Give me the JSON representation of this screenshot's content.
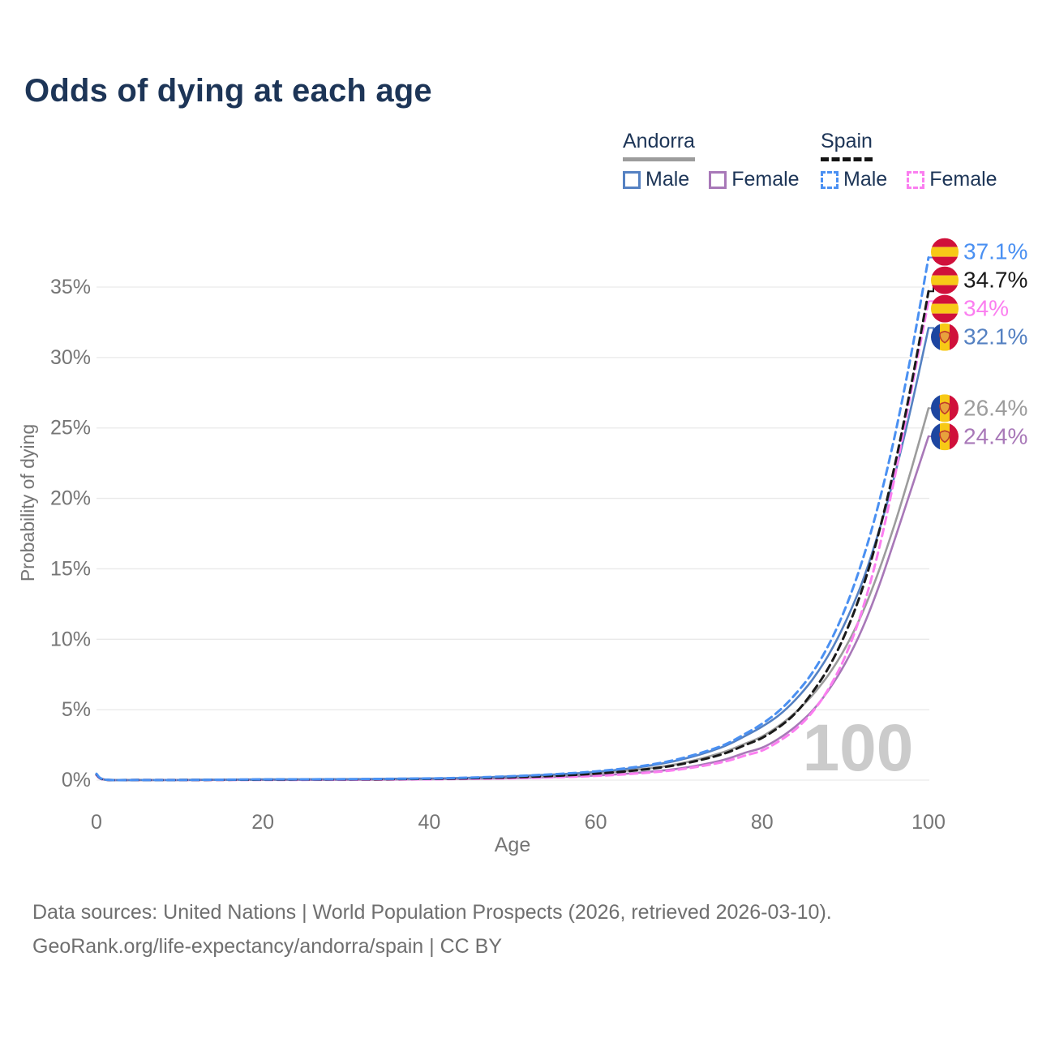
{
  "title": "Odds of dying at each age",
  "watermark": "100",
  "colors": {
    "title": "#1d3557",
    "axis_text": "#757575",
    "grid": "#e9e9e9",
    "watermark": "#cbcbcb",
    "footer": "#6f6f6f",
    "spain_male": "#4a90f2",
    "spain_total": "#1a1a1a",
    "spain_female": "#fb7ef0",
    "andorra_male": "#5581c2",
    "andorra_total": "#9c9c9c",
    "andorra_female": "#a878b8"
  },
  "legend": {
    "groups": [
      {
        "country": "Andorra",
        "line_style": "solid",
        "header_swatch_color": "#9c9c9c",
        "items": [
          {
            "label": "Male",
            "color": "#5581c2"
          },
          {
            "label": "Female",
            "color": "#a878b8"
          }
        ]
      },
      {
        "country": "Spain",
        "line_style": "dashed",
        "header_swatch_color": "#141414",
        "items": [
          {
            "label": "Male",
            "color": "#4a90f2"
          },
          {
            "label": "Female",
            "color": "#fb7ef0"
          }
        ]
      }
    ]
  },
  "footer": {
    "line1": "Data sources: United Nations | World Population Prospects (2026, retrieved 2026-03-10).",
    "line2": "GeoRank.org/life-expectancy/andorra/spain | CC BY"
  },
  "chart_data": {
    "type": "line",
    "title": "Odds of dying at each age",
    "xlabel": "Age",
    "ylabel": "Probability of dying",
    "xlim": [
      0,
      100
    ],
    "ylim": [
      0,
      38
    ],
    "grid": "horizontal",
    "legend_position": "top-right",
    "xticks": [
      0,
      20,
      40,
      60,
      80,
      100
    ],
    "xtick_labels": [
      "0",
      "20",
      "40",
      "60",
      "80",
      "100"
    ],
    "yticks": [
      0,
      5,
      10,
      15,
      20,
      25,
      30,
      35
    ],
    "ytick_labels": [
      "0%",
      "5%",
      "10%",
      "15%",
      "20%",
      "25%",
      "30%",
      "35%"
    ],
    "age_watermark": "100",
    "x": [
      0,
      1,
      5,
      10,
      20,
      30,
      40,
      45,
      50,
      55,
      60,
      65,
      70,
      75,
      78,
      80,
      82,
      84,
      86,
      88,
      90,
      92,
      94,
      96,
      98,
      100
    ],
    "series": [
      {
        "name": "Andorra Female",
        "country": "Andorra",
        "sex": "Female",
        "color": "#a878b8",
        "dash": false,
        "end_label": "24.4%",
        "flag": "andorra",
        "values": [
          0.35,
          0.03,
          0.008,
          0.008,
          0.015,
          0.025,
          0.06,
          0.1,
          0.14,
          0.22,
          0.33,
          0.52,
          0.82,
          1.38,
          1.95,
          2.3,
          2.95,
          3.8,
          4.9,
          6.4,
          8.3,
          10.7,
          13.7,
          17.2,
          20.8,
          24.4
        ]
      },
      {
        "name": "Andorra",
        "country": "Andorra",
        "sex": "Both",
        "color": "#9c9c9c",
        "dash": false,
        "end_label": "26.4%",
        "flag": "andorra",
        "values": [
          0.4,
          0.035,
          0.009,
          0.01,
          0.035,
          0.05,
          0.09,
          0.14,
          0.21,
          0.32,
          0.48,
          0.74,
          1.16,
          1.92,
          2.6,
          3.1,
          3.85,
          4.8,
          6.0,
          7.5,
          9.4,
          11.8,
          14.8,
          18.3,
          22.2,
          26.4
        ]
      },
      {
        "name": "Andorra Male",
        "country": "Andorra",
        "sex": "Male",
        "color": "#5581c2",
        "dash": false,
        "end_label": "32.1%",
        "flag": "andorra",
        "values": [
          0.45,
          0.04,
          0.01,
          0.012,
          0.05,
          0.07,
          0.12,
          0.17,
          0.27,
          0.4,
          0.58,
          0.9,
          1.42,
          2.3,
          3.15,
          3.8,
          4.6,
          5.7,
          7.1,
          8.9,
          11.2,
          14.0,
          17.6,
          21.8,
          26.7,
          32.1
        ]
      },
      {
        "name": "Spain Female",
        "country": "Spain",
        "sex": "Female",
        "color": "#fb7ef0",
        "dash": true,
        "end_label": "34%",
        "flag": "spain",
        "values": [
          0.35,
          0.03,
          0.008,
          0.008,
          0.015,
          0.025,
          0.06,
          0.09,
          0.13,
          0.2,
          0.3,
          0.47,
          0.75,
          1.25,
          1.75,
          2.1,
          2.75,
          3.6,
          4.8,
          6.5,
          8.8,
          12.0,
          16.3,
          21.7,
          27.9,
          34.0
        ]
      },
      {
        "name": "Spain",
        "country": "Spain",
        "sex": "Both",
        "color": "#1a1a1a",
        "dash": true,
        "end_label": "34.7%",
        "flag": "spain",
        "values": [
          0.4,
          0.035,
          0.009,
          0.01,
          0.035,
          0.05,
          0.09,
          0.13,
          0.2,
          0.3,
          0.46,
          0.7,
          1.1,
          1.8,
          2.5,
          3.0,
          3.75,
          4.75,
          6.2,
          8.0,
          10.4,
          13.5,
          17.5,
          22.5,
          28.3,
          34.7
        ]
      },
      {
        "name": "Spain Male",
        "country": "Spain",
        "sex": "Male",
        "color": "#4a90f2",
        "dash": true,
        "end_label": "37.1%",
        "flag": "spain",
        "values": [
          0.45,
          0.04,
          0.01,
          0.012,
          0.05,
          0.07,
          0.12,
          0.18,
          0.28,
          0.42,
          0.62,
          0.95,
          1.5,
          2.4,
          3.3,
          4.0,
          4.9,
          6.1,
          7.6,
          9.6,
          12.2,
          15.5,
          19.6,
          24.6,
          30.5,
          37.1
        ]
      }
    ]
  }
}
